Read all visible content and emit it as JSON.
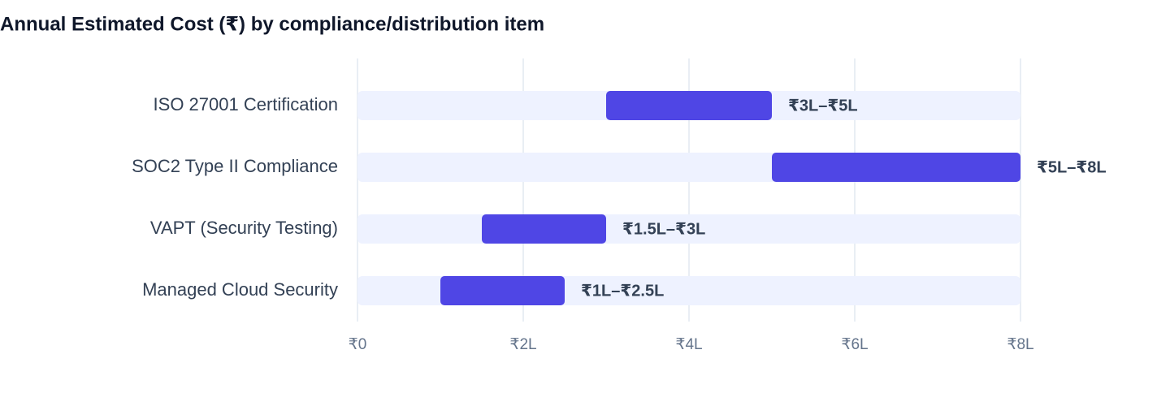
{
  "chart_data": {
    "type": "range-bar",
    "title": "Annual Estimated Cost (₹) by compliance/distribution item",
    "categories": [
      "ISO 27001 Certification",
      "SOC2 Type II Compliance",
      "VAPT (Security Testing)",
      "Managed Cloud Security"
    ],
    "low": [
      3,
      5,
      1.5,
      1
    ],
    "high": [
      5,
      8,
      3,
      2.5
    ],
    "value_labels": [
      "₹3L–₹5L",
      "₹5L–₹8L",
      "₹1.5L–₹3L",
      "₹1L–₹2.5L"
    ],
    "color": "#4f46e5",
    "track_color": "#eef2ff",
    "xlim": [
      0,
      8
    ],
    "xticks": [
      {
        "value": 0,
        "label": "₹0"
      },
      {
        "value": 2,
        "label": "₹2L"
      },
      {
        "value": 4,
        "label": "₹4L"
      },
      {
        "value": 6,
        "label": "₹6L"
      },
      {
        "value": 8,
        "label": "₹8L"
      }
    ],
    "grid": true
  }
}
